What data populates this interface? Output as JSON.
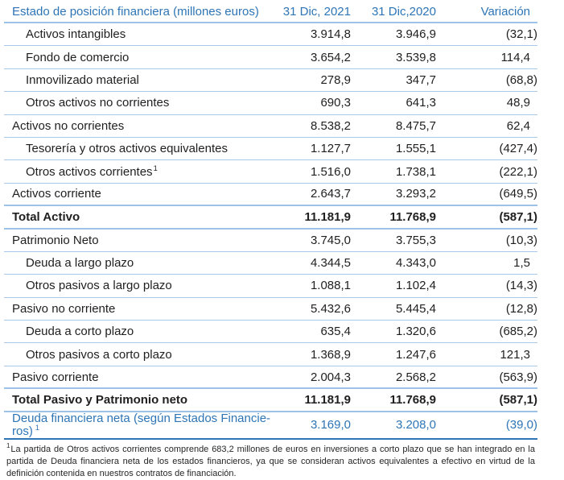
{
  "colors": {
    "accent_blue": "#2E75B6",
    "separator_light": "#A9C9EA",
    "border_medium": "#9CC2E5"
  },
  "table": {
    "header": {
      "title": "Estado de posición financiera (millones euros)",
      "col_2021": "31 Dic, 2021",
      "col_2020": "31 Dic,2020",
      "col_variation": "Variación"
    },
    "rows": [
      {
        "label": "Activos intangibles",
        "v2021": "3.914,8",
        "v2020": "3.946,9",
        "variation": "(32,1)"
      },
      {
        "label": "Fondo de comercio",
        "v2021": "3.654,2",
        "v2020": "3.539,8",
        "variation": "114,4"
      },
      {
        "label": "Inmovilizado material",
        "v2021": "278,9",
        "v2020": "347,7",
        "variation": "(68,8)"
      },
      {
        "label": "Otros activos no corrientes",
        "v2021": "690,3",
        "v2020": "641,3",
        "variation": "48,9"
      },
      {
        "label": "Activos no corrientes",
        "v2021": "8.538,2",
        "v2020": "8.475,7",
        "variation": "62,4"
      },
      {
        "label": "Tesorería y otros activos equivalentes",
        "v2021": "1.127,7",
        "v2020": "1.555,1",
        "variation": "(427,4)"
      },
      {
        "label": "Otros activos corrientes",
        "sup": "1",
        "v2021": "1.516,0",
        "v2020": "1.738,1",
        "variation": "(222,1)"
      },
      {
        "label": "Activos corriente",
        "v2021": "2.643,7",
        "v2020": "3.293,2",
        "variation": "(649,5)"
      },
      {
        "label": "Total Activo",
        "v2021": "11.181,9",
        "v2020": "11.768,9",
        "variation": "(587,1)"
      },
      {
        "label": "Patrimonio Neto",
        "v2021": "3.745,0",
        "v2020": "3.755,3",
        "variation": "(10,3)"
      },
      {
        "label": "Deuda a largo plazo",
        "v2021": "4.344,5",
        "v2020": "4.343,0",
        "variation": "1,5"
      },
      {
        "label": "Otros pasivos a largo plazo",
        "v2021": "1.088,1",
        "v2020": "1.102,4",
        "variation": "(14,3)"
      },
      {
        "label": "Pasivo no corriente",
        "v2021": "5.432,6",
        "v2020": "5.445,4",
        "variation": "(12,8)"
      },
      {
        "label": "Deuda a corto plazo",
        "v2021": "635,4",
        "v2020": "1.320,6",
        "variation": "(685,2)"
      },
      {
        "label": "Otros pasivos a corto plazo",
        "v2021": "1.368,9",
        "v2020": "1.247,6",
        "variation": "121,3"
      },
      {
        "label": "Pasivo corriente",
        "v2021": "2.004,3",
        "v2020": "2.568,2",
        "variation": "(563,9)"
      },
      {
        "label": "Total Pasivo y Patrimonio neto",
        "v2021": "11.181,9",
        "v2020": "11.768,9",
        "variation": "(587,1)"
      }
    ],
    "net_debt_row": {
      "label_line1": "Deuda financiera neta (según Estados Financie-",
      "label_line2": "ros)",
      "sup": "1",
      "v2021": "3.169,0",
      "v2020": "3.208,0",
      "variation": "(39,0)"
    }
  },
  "footnote": {
    "marker": "1",
    "text": "La partida de Otros activos corrientes comprende 683,2 millones de euros en inversiones a corto plazo que se han integrado en la partida de Deuda financiera neta de los estados financieros, ya que se consideran activos equivalentes a efectivo en virtud de la definición contenida en nuestros contratos de financiación."
  }
}
